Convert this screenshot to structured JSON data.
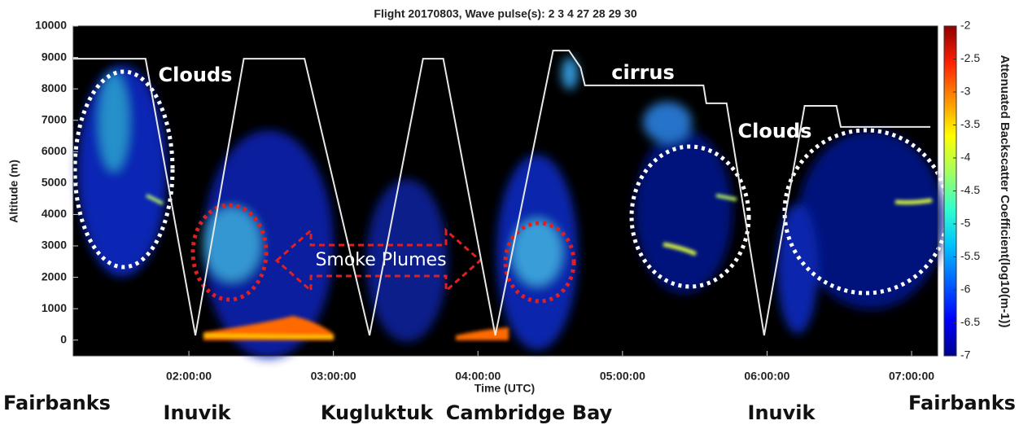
{
  "chart_data": {
    "type": "line",
    "title": "Flight 20170803, Wave pulse(s): 2   3   4  27  28  29  30",
    "x_label": "Time (UTC)",
    "y_label": "Altitude (m)",
    "xlim": [
      1.2,
      7.18
    ],
    "xticks": [
      {
        "value": 2,
        "label": "02:00:00"
      },
      {
        "value": 3,
        "label": "03:00:00"
      },
      {
        "value": 4,
        "label": "04:00:00"
      },
      {
        "value": 5,
        "label": "05:00:00"
      },
      {
        "value": 6,
        "label": "06:00:00"
      },
      {
        "value": 7,
        "label": "07:00:00"
      }
    ],
    "ylim": [
      -500,
      10000
    ],
    "yticks": [
      0,
      1000,
      2000,
      3000,
      4000,
      5000,
      6000,
      7000,
      8000,
      9000,
      10000
    ],
    "x": [
      1.2,
      1.7,
      2.045,
      2.38,
      2.8,
      3.25,
      3.62,
      3.76,
      4.12,
      4.52,
      4.63,
      4.71,
      4.74,
      5.56,
      5.58,
      5.72,
      5.98,
      6.26,
      6.48,
      6.51,
      7.13
    ],
    "series": [
      {
        "color": "#e8e8e8",
        "values": [
          8960,
          8960,
          150,
          8960,
          8960,
          150,
          8960,
          8960,
          150,
          9220,
          9220,
          8680,
          8110,
          8110,
          7540,
          7540,
          150,
          7460,
          7460,
          6790,
          6790
        ]
      }
    ],
    "colorbar": {
      "label": "Attenuated Backscatter Coefficient(log10(m-1))",
      "lim": [
        -7,
        -2
      ],
      "ticks": [
        -2,
        -2.5,
        -3,
        -3.5,
        -4,
        -4.5,
        -5,
        -5.5,
        -6,
        -6.5,
        -7
      ],
      "colors": [
        "#00008f",
        "#0000ff",
        "#0060ff",
        "#00c0ff",
        "#30ffcf",
        "#a0ff60",
        "#ffff00",
        "#ff9000",
        "#ff2000",
        "#8f0000"
      ]
    },
    "annotations": [
      "Clouds",
      "cirrus",
      "Clouds",
      "Smoke Plumes"
    ],
    "locations": [
      "Fairbanks",
      "Inuvik",
      "Kugluktuk",
      "Cambridge Bay",
      "Inuvik",
      "Fairbanks"
    ]
  }
}
